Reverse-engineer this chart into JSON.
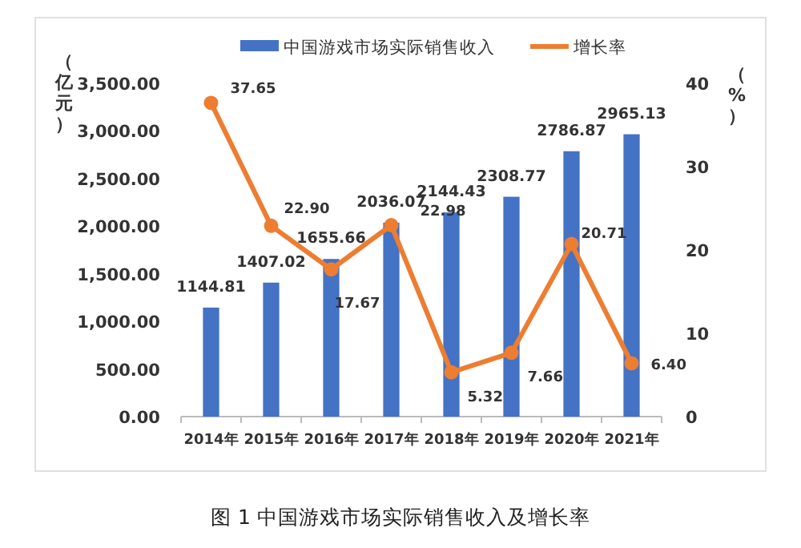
{
  "chart_data": {
    "type": "bar",
    "title": "图 1 中国游戏市场实际销售收入及增长率",
    "ylabel": "（亿元）",
    "y2label": "（%）",
    "categories": [
      "2014年",
      "2015年",
      "2016年",
      "2017年",
      "2018年",
      "2019年",
      "2020年",
      "2021年"
    ],
    "series": [
      {
        "name": "中国游戏市场实际销售收入",
        "color": "#4472c4",
        "values": [
          1144.81,
          1407.02,
          1655.66,
          2036.07,
          2144.43,
          2308.77,
          2786.87,
          2965.13
        ],
        "value_labels": [
          "1144.81",
          "1407.02",
          "1655.66",
          "2036.07",
          "2144.43",
          "2308.77",
          "2786.87",
          "2965.13"
        ]
      },
      {
        "name": "增长率",
        "type": "line",
        "axis": "y2",
        "color": "#ed7d31",
        "marker": "circle",
        "values": [
          37.65,
          22.9,
          17.67,
          22.98,
          5.32,
          7.66,
          20.71,
          6.4
        ],
        "value_labels": [
          "37.65",
          "22.90",
          "17.67",
          "22.98",
          "5.32",
          "7.66",
          "20.71",
          "6.40"
        ]
      }
    ],
    "ylim": [
      0,
      3500
    ],
    "yticks": [
      {
        "value": 0,
        "label": "0.00"
      },
      {
        "value": 500,
        "label": "500.00"
      },
      {
        "value": 1000,
        "label": "1,000.00"
      },
      {
        "value": 1500,
        "label": "1,500.00"
      },
      {
        "value": 2000,
        "label": "2,000.00"
      },
      {
        "value": 2500,
        "label": "2,500.00"
      },
      {
        "value": 3000,
        "label": "3,000.00"
      },
      {
        "value": 3500,
        "label": "3,500.00"
      }
    ],
    "y2lim": [
      0,
      40
    ],
    "y2ticks": [
      0,
      10,
      20,
      30,
      40
    ],
    "legend": "top",
    "grid": false
  }
}
